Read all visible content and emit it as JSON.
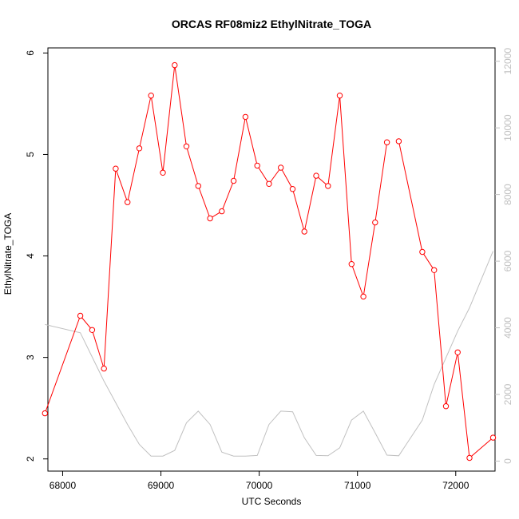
{
  "chart_data": {
    "type": "line",
    "title": "ORCAS RF08miz2 EthylNitrate_TOGA",
    "xlabel": "UTC Seconds",
    "ylabel": "EthylNitrate_TOGA",
    "xlim": [
      67850,
      72400
    ],
    "ylim": [
      1.88,
      6.05
    ],
    "y2lim": [
      -300,
      12400
    ],
    "x_ticks": [
      68000,
      69000,
      70000,
      71000,
      72000
    ],
    "y_ticks": [
      2,
      3,
      4,
      5,
      6
    ],
    "y2_ticks": [
      0,
      2000,
      4000,
      6000,
      8000,
      10000,
      12000
    ],
    "series": [
      {
        "color": "#ff0000",
        "axis": "left",
        "marker": "open-circle",
        "segments": [
          {
            "x": [
              67820,
              68180,
              68300,
              68420,
              68540,
              68660,
              68780,
              68900,
              69020,
              69140,
              69260,
              69380,
              69500,
              69620,
              69740,
              69860,
              69980,
              70100,
              70220,
              70340,
              70460,
              70580,
              70700,
              70820,
              70940,
              71060,
              71180,
              71300
            ],
            "y": [
              2.45,
              3.41,
              3.27,
              2.89,
              4.86,
              4.53,
              5.06,
              5.58,
              4.82,
              5.88,
              5.08,
              4.69,
              4.37,
              4.44,
              4.74,
              5.37,
              4.89,
              4.71,
              4.87,
              4.66,
              4.24,
              4.79,
              4.69,
              5.58,
              3.92,
              3.6,
              4.33,
              5.12
            ]
          },
          {
            "x": [
              71420,
              71660,
              71780,
              71900,
              72020,
              72140,
              72380
            ],
            "y": [
              5.13,
              4.04,
              3.86,
              2.52,
              3.05,
              2.01,
              2.21
            ]
          }
        ]
      },
      {
        "color": "#c0c0c0",
        "axis": "right",
        "marker": "none",
        "x": [
          67820,
          68180,
          68420,
          68660,
          68780,
          68900,
          69020,
          69140,
          69260,
          69380,
          69500,
          69620,
          69740,
          69860,
          69980,
          70100,
          70220,
          70340,
          70460,
          70580,
          70700,
          70820,
          70940,
          71060,
          71180,
          71300,
          71420,
          71660,
          71780,
          71900,
          72020,
          72140,
          72380
        ],
        "y": [
          4100,
          3850,
          2400,
          1100,
          500,
          150,
          150,
          320,
          1150,
          1500,
          1100,
          270,
          150,
          150,
          170,
          1100,
          1500,
          1480,
          700,
          170,
          160,
          400,
          1230,
          1500,
          850,
          180,
          160,
          1230,
          2300,
          3100,
          3900,
          4600,
          6300
        ]
      }
    ]
  }
}
